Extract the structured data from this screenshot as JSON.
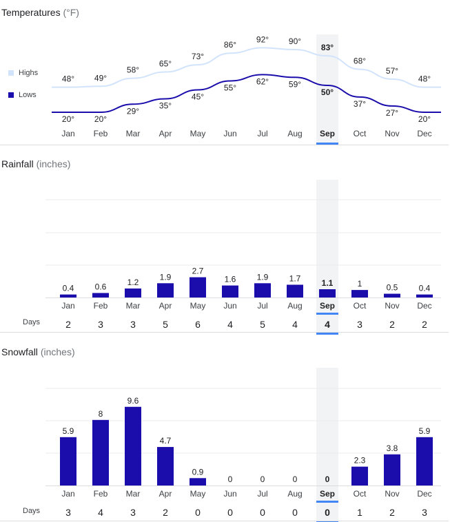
{
  "temperatures": {
    "title": "Temperatures",
    "unit": "(°F)",
    "legend": [
      {
        "label": "Highs",
        "color": "#d2e3fc"
      },
      {
        "label": "Lows",
        "color": "#1a0dab"
      }
    ]
  },
  "rainfall": {
    "title": "Rainfall",
    "unit": "(inches)",
    "days_label": "Days"
  },
  "snowfall": {
    "title": "Snowfall",
    "unit": "(inches)",
    "days_label": "Days"
  },
  "selected_month": "Sep",
  "colors": {
    "highs_line": "#d2e3fc",
    "lows_line": "#1a0dab",
    "bar": "#1a0dab",
    "selected_band": "#f1f3f4",
    "selected_underline": "#4285f4",
    "gridline": "#ebebeb"
  },
  "chart_data": [
    {
      "type": "line",
      "title": "Temperatures",
      "categories": [
        "Jan",
        "Feb",
        "Mar",
        "Apr",
        "May",
        "Jun",
        "Jul",
        "Aug",
        "Sep",
        "Oct",
        "Nov",
        "Dec"
      ],
      "series": [
        {
          "name": "Highs",
          "values": [
            48,
            49,
            58,
            65,
            73,
            86,
            92,
            90,
            83,
            68,
            57,
            48
          ],
          "labels": [
            "48°",
            "49°",
            "58°",
            "65°",
            "73°",
            "86°",
            "92°",
            "90°",
            "83°",
            "68°",
            "57°",
            "48°"
          ]
        },
        {
          "name": "Lows",
          "values": [
            20,
            20,
            29,
            35,
            45,
            55,
            62,
            59,
            50,
            37,
            27,
            20
          ],
          "labels": [
            "20°",
            "20°",
            "29°",
            "35°",
            "45°",
            "55°",
            "62°",
            "59°",
            "50°",
            "37°",
            "27°",
            "20°"
          ]
        }
      ],
      "highlight": "Sep"
    },
    {
      "type": "bar",
      "title": "Rainfall",
      "categories": [
        "Jan",
        "Feb",
        "Mar",
        "Apr",
        "May",
        "Jun",
        "Jul",
        "Aug",
        "Sep",
        "Oct",
        "Nov",
        "Dec"
      ],
      "values": [
        0.4,
        0.6,
        1.2,
        1.9,
        2.7,
        1.6,
        1.9,
        1.7,
        1.1,
        1,
        0.5,
        0.4
      ],
      "labels": [
        "0.4",
        "0.6",
        "1.2",
        "1.9",
        "2.7",
        "1.6",
        "1.9",
        "1.7",
        "1.1",
        "1",
        "0.5",
        "0.4"
      ],
      "days": [
        "2",
        "3",
        "3",
        "5",
        "6",
        "4",
        "5",
        "4",
        "4",
        "3",
        "2",
        "2"
      ],
      "ylim": [
        0,
        14
      ],
      "grid": true,
      "highlight": "Sep"
    },
    {
      "type": "bar",
      "title": "Snowfall",
      "categories": [
        "Jan",
        "Feb",
        "Mar",
        "Apr",
        "May",
        "Jun",
        "Jul",
        "Aug",
        "Sep",
        "Oct",
        "Nov",
        "Dec"
      ],
      "values": [
        5.9,
        8,
        9.6,
        4.7,
        0.9,
        0,
        0,
        0,
        0,
        2.3,
        3.8,
        5.9
      ],
      "labels": [
        "5.9",
        "8",
        "9.6",
        "4.7",
        "0.9",
        "0",
        "0",
        "0",
        "0",
        "2.3",
        "3.8",
        "5.9"
      ],
      "days": [
        "3",
        "4",
        "3",
        "2",
        "0",
        "0",
        "0",
        "0",
        "0",
        "1",
        "2",
        "3"
      ],
      "ylim": [
        0,
        14
      ],
      "grid": true,
      "highlight": "Sep"
    }
  ]
}
